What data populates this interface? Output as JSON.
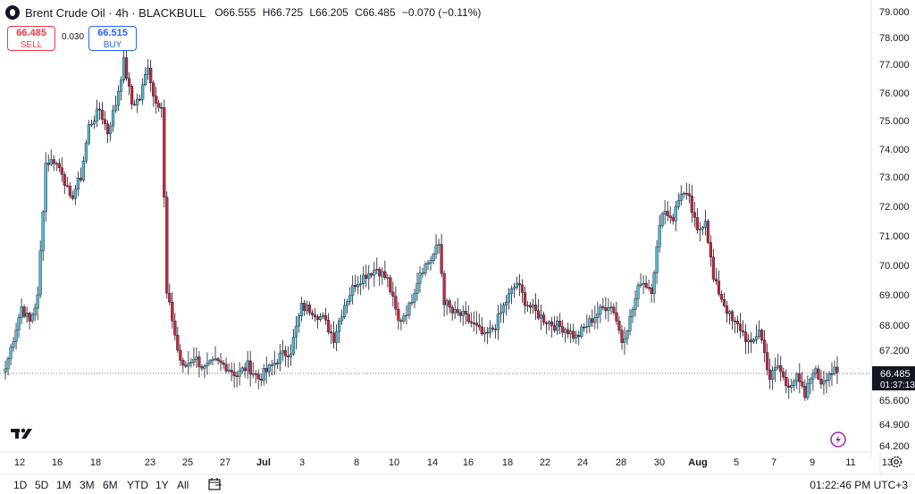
{
  "header": {
    "title": "Brent Crude Oil · 4h · BLACKBULL",
    "open": "O66.555",
    "high": "H66.725",
    "low": "L66.205",
    "close": "C66.485",
    "change": "−0.070 (−0.11%)"
  },
  "trade": {
    "sell_price": "66.485",
    "sell_label": "SELL",
    "spread": "0.030",
    "buy_price": "66.515",
    "buy_label": "BUY"
  },
  "price_axis": {
    "labels": [
      "79.000",
      "78.000",
      "77.000",
      "76.000",
      "75.000",
      "74.000",
      "73.000",
      "72.000",
      "71.000",
      "70.000",
      "69.000",
      "68.000",
      "67.200",
      "66.485",
      "65.600",
      "64.900",
      "64.200"
    ],
    "current_price": "66.485",
    "countdown": "01:37:13"
  },
  "time_axis": {
    "labels": [
      "12",
      "16",
      "18",
      "23",
      "25",
      "27",
      "Jul",
      "3",
      "8",
      "10",
      "14",
      "16",
      "18",
      "22",
      "24",
      "28",
      "30",
      "Aug",
      "5",
      "7",
      "9",
      "11",
      "13"
    ]
  },
  "range_buttons": [
    "1D",
    "5D",
    "1M",
    "3M",
    "6M",
    "YTD",
    "1Y",
    "All"
  ],
  "clock": "01:22:46 PM UTC+3",
  "colors": {
    "up": "#4fb8d3",
    "down": "#c6283d",
    "wick": "#131722",
    "current_line": "#787b86"
  },
  "icons": {
    "logo": "tradingview-logo-icon",
    "lightning": "lightning-icon",
    "settings": "gear-icon",
    "calendar": "calendar-goto-icon"
  },
  "chart_data": {
    "type": "candlestick",
    "title": "Brent Crude Oil · 4h · BLACKBULL",
    "ylim": [
      64.2,
      79.0
    ],
    "y_scale": "nonlinear (tick labels as printed)",
    "x_ticks": [
      "12",
      "16",
      "18",
      "23",
      "25",
      "27",
      "Jul",
      "3",
      "8",
      "10",
      "14",
      "16",
      "18",
      "22",
      "24",
      "28",
      "30",
      "Aug",
      "5",
      "7",
      "9",
      "11",
      "13"
    ],
    "close_path": [
      {
        "i": 0,
        "v": 66.6
      },
      {
        "i": 3,
        "v": 67.6
      },
      {
        "i": 6,
        "v": 68.6
      },
      {
        "i": 9,
        "v": 68.1
      },
      {
        "i": 12,
        "v": 68.9
      },
      {
        "i": 15,
        "v": 73.5
      },
      {
        "i": 18,
        "v": 73.6
      },
      {
        "i": 21,
        "v": 73.2
      },
      {
        "i": 24,
        "v": 72.2
      },
      {
        "i": 28,
        "v": 73.0
      },
      {
        "i": 31,
        "v": 74.8
      },
      {
        "i": 35,
        "v": 75.4
      },
      {
        "i": 38,
        "v": 74.6
      },
      {
        "i": 41,
        "v": 75.6
      },
      {
        "i": 44,
        "v": 77.1
      },
      {
        "i": 47,
        "v": 75.6
      },
      {
        "i": 50,
        "v": 75.8
      },
      {
        "i": 53,
        "v": 77.0
      },
      {
        "i": 55,
        "v": 75.9
      },
      {
        "i": 58,
        "v": 75.5
      },
      {
        "i": 60,
        "v": 69.0
      },
      {
        "i": 62,
        "v": 68.2
      },
      {
        "i": 64,
        "v": 67.2
      },
      {
        "i": 66,
        "v": 66.6
      },
      {
        "i": 70,
        "v": 67.0
      },
      {
        "i": 74,
        "v": 66.6
      },
      {
        "i": 78,
        "v": 66.8
      },
      {
        "i": 82,
        "v": 66.7
      },
      {
        "i": 86,
        "v": 66.4
      },
      {
        "i": 90,
        "v": 66.7
      },
      {
        "i": 94,
        "v": 66.3
      },
      {
        "i": 98,
        "v": 66.6
      },
      {
        "i": 102,
        "v": 67.0
      },
      {
        "i": 106,
        "v": 67.2
      },
      {
        "i": 110,
        "v": 68.6
      },
      {
        "i": 114,
        "v": 68.5
      },
      {
        "i": 118,
        "v": 68.2
      },
      {
        "i": 122,
        "v": 67.6
      },
      {
        "i": 126,
        "v": 68.7
      },
      {
        "i": 130,
        "v": 69.4
      },
      {
        "i": 134,
        "v": 69.7
      },
      {
        "i": 138,
        "v": 69.9
      },
      {
        "i": 142,
        "v": 69.5
      },
      {
        "i": 146,
        "v": 68.1
      },
      {
        "i": 150,
        "v": 68.6
      },
      {
        "i": 154,
        "v": 69.8
      },
      {
        "i": 158,
        "v": 70.2
      },
      {
        "i": 161,
        "v": 70.7
      },
      {
        "i": 163,
        "v": 68.8
      },
      {
        "i": 166,
        "v": 68.4
      },
      {
        "i": 170,
        "v": 68.3
      },
      {
        "i": 174,
        "v": 68.0
      },
      {
        "i": 178,
        "v": 67.6
      },
      {
        "i": 182,
        "v": 68.0
      },
      {
        "i": 186,
        "v": 68.8
      },
      {
        "i": 190,
        "v": 69.4
      },
      {
        "i": 193,
        "v": 68.8
      },
      {
        "i": 196,
        "v": 68.5
      },
      {
        "i": 200,
        "v": 68.2
      },
      {
        "i": 204,
        "v": 68.0
      },
      {
        "i": 208,
        "v": 67.9
      },
      {
        "i": 212,
        "v": 67.6
      },
      {
        "i": 216,
        "v": 68.0
      },
      {
        "i": 220,
        "v": 68.4
      },
      {
        "i": 224,
        "v": 68.7
      },
      {
        "i": 226,
        "v": 68.5
      },
      {
        "i": 229,
        "v": 67.5
      },
      {
        "i": 232,
        "v": 68.2
      },
      {
        "i": 236,
        "v": 69.5
      },
      {
        "i": 240,
        "v": 69.2
      },
      {
        "i": 244,
        "v": 71.9
      },
      {
        "i": 248,
        "v": 71.6
      },
      {
        "i": 251,
        "v": 72.5
      },
      {
        "i": 254,
        "v": 72.2
      },
      {
        "i": 257,
        "v": 71.1
      },
      {
        "i": 260,
        "v": 71.6
      },
      {
        "i": 263,
        "v": 69.5
      },
      {
        "i": 266,
        "v": 68.9
      },
      {
        "i": 270,
        "v": 68.1
      },
      {
        "i": 273,
        "v": 67.9
      },
      {
        "i": 277,
        "v": 67.3
      },
      {
        "i": 280,
        "v": 67.9
      },
      {
        "i": 284,
        "v": 66.3
      },
      {
        "i": 287,
        "v": 66.7
      },
      {
        "i": 290,
        "v": 66.1
      },
      {
        "i": 294,
        "v": 66.3
      },
      {
        "i": 297,
        "v": 65.7
      },
      {
        "i": 300,
        "v": 66.6
      },
      {
        "i": 303,
        "v": 66.2
      },
      {
        "i": 306,
        "v": 66.5
      },
      {
        "i": 309,
        "v": 66.485
      }
    ],
    "last_price": 66.485
  }
}
